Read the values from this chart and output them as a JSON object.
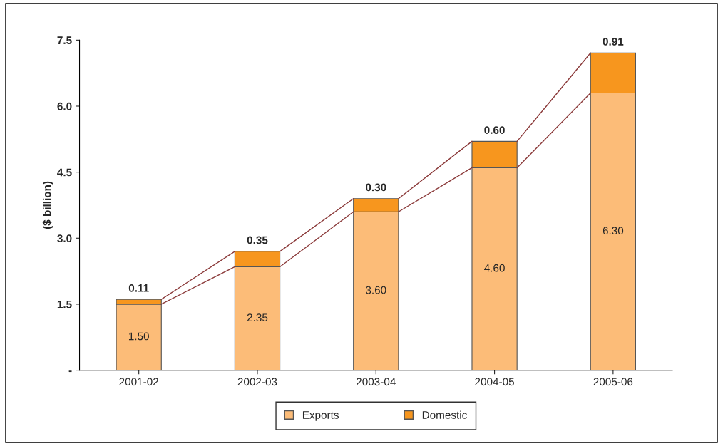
{
  "chart_data": {
    "type": "bar",
    "stacked": true,
    "ylabel": "($ billion)",
    "categories": [
      "2001-02",
      "2002-03",
      "2003-04",
      "2004-05",
      "2005-06"
    ],
    "series": [
      {
        "name": "Exports",
        "color": "#fcbc78",
        "values": [
          1.5,
          2.35,
          3.6,
          4.6,
          6.3
        ],
        "value_labels": [
          "1.50",
          "2.35",
          "3.60",
          "4.60",
          "6.30"
        ]
      },
      {
        "name": "Domestic",
        "color": "#f7961e",
        "values": [
          0.11,
          0.35,
          0.3,
          0.6,
          0.91
        ],
        "value_labels": [
          "0.11",
          "0.35",
          "0.30",
          "0.60",
          "0.91"
        ]
      }
    ],
    "ylim": [
      0,
      7.5
    ],
    "yticks": [
      {
        "value": 0,
        "label": "-"
      },
      1.5,
      {
        "value": 3,
        "label": "3.0"
      },
      4.5,
      {
        "value": 6,
        "label": "6.0"
      },
      7.5
    ],
    "grid": false,
    "legend": "bottom"
  }
}
